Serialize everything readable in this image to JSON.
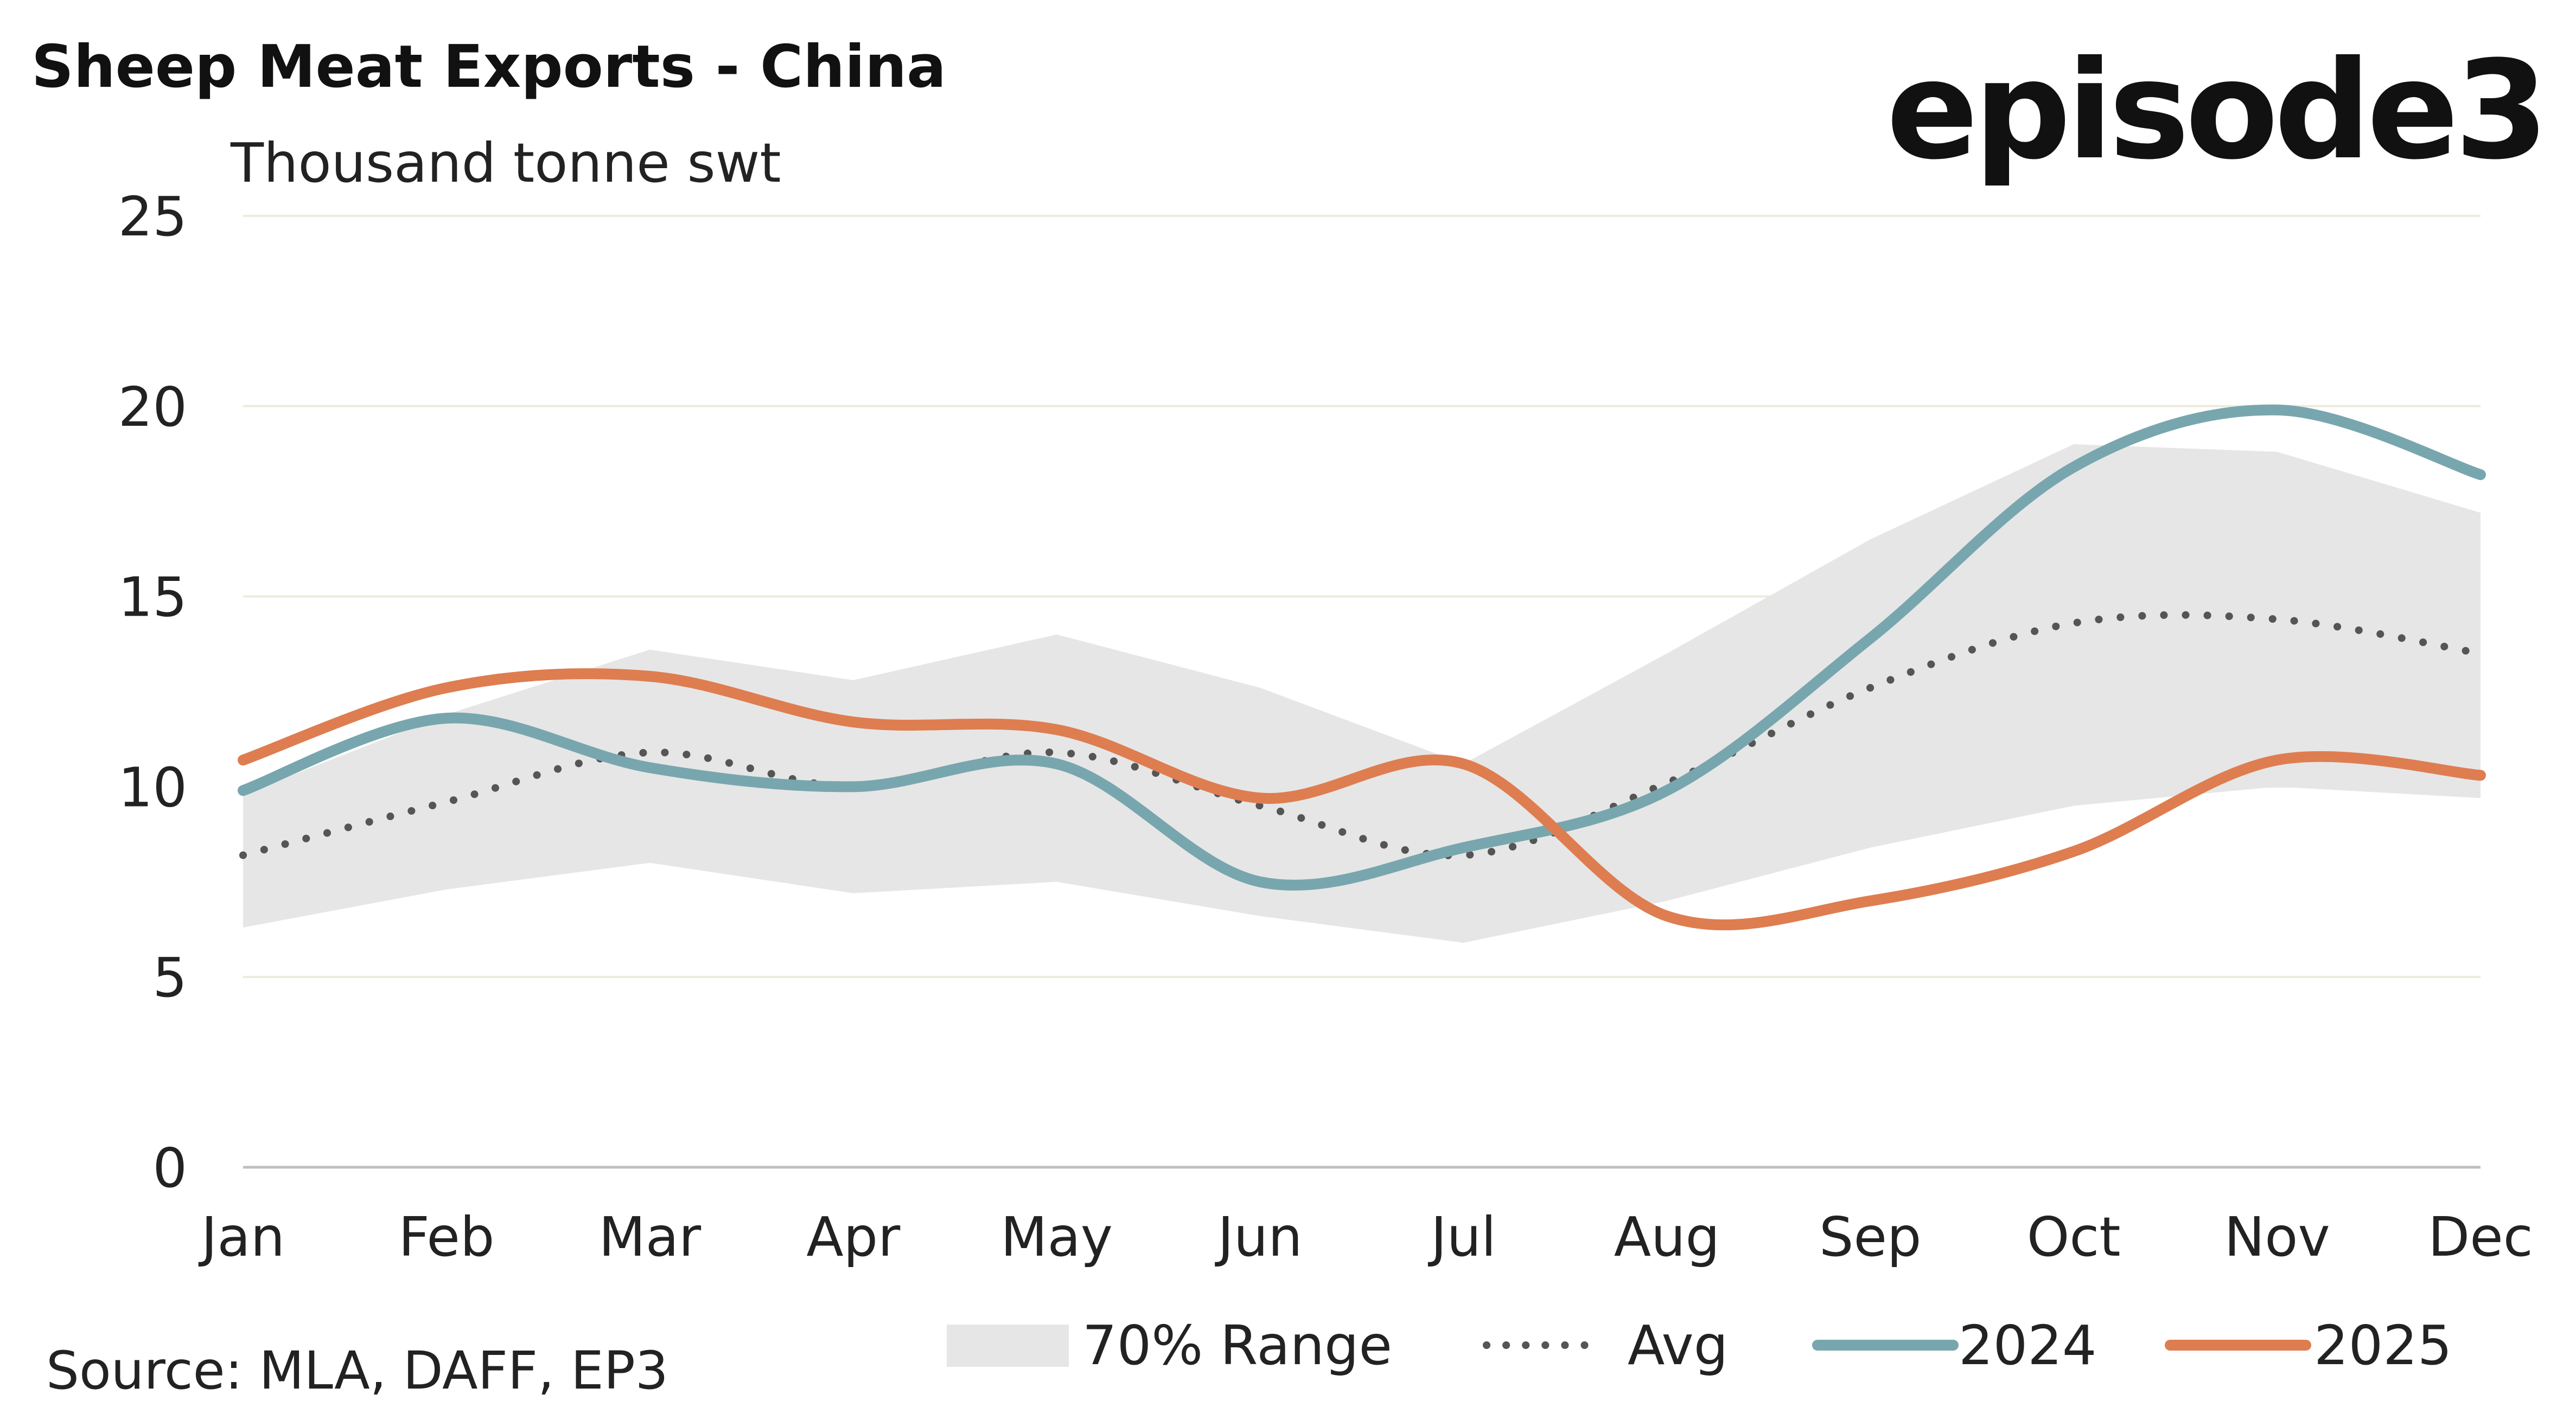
{
  "header": {
    "title": "Sheep Meat Exports - China",
    "logo": "episode3"
  },
  "footer": {
    "source": "Source: MLA, DAFF, EP3"
  },
  "chart_data": {
    "type": "line",
    "title": "Sheep Meat Exports - China",
    "ylabel": "Thousand tonne swt",
    "xlabel": "",
    "categories": [
      "Jan",
      "Feb",
      "Mar",
      "Apr",
      "May",
      "Jun",
      "Jul",
      "Aug",
      "Sep",
      "Oct",
      "Nov",
      "Dec"
    ],
    "ylim": [
      0,
      25
    ],
    "yticks": [
      0,
      5,
      10,
      15,
      20,
      25
    ],
    "grid": true,
    "legend_position": "bottom",
    "range": {
      "name": "70% Range",
      "color": "#e6e6e6",
      "low": [
        6.3,
        7.3,
        8.0,
        7.2,
        7.5,
        6.6,
        5.9,
        7.0,
        8.4,
        9.5,
        10.0,
        9.7
      ],
      "high": [
        9.8,
        11.9,
        13.6,
        12.8,
        14.0,
        12.6,
        10.6,
        13.5,
        16.5,
        19.0,
        18.8,
        17.2
      ]
    },
    "series": [
      {
        "name": "Avg",
        "style": "dotted",
        "color": "#555555",
        "values": [
          8.2,
          9.6,
          10.9,
          10.0,
          10.9,
          9.5,
          8.2,
          10.1,
          12.6,
          14.3,
          14.4,
          13.5
        ]
      },
      {
        "name": "2024",
        "style": "solid",
        "color": "#78a6ae",
        "values": [
          9.9,
          11.8,
          10.5,
          10.0,
          10.6,
          7.5,
          8.4,
          9.9,
          13.9,
          18.4,
          19.9,
          18.2
        ]
      },
      {
        "name": "2025",
        "style": "solid",
        "color": "#de7d50",
        "values": [
          10.7,
          12.6,
          12.9,
          11.7,
          11.5,
          9.7,
          10.6,
          6.6,
          7.0,
          8.3,
          10.7,
          10.3
        ]
      }
    ]
  }
}
